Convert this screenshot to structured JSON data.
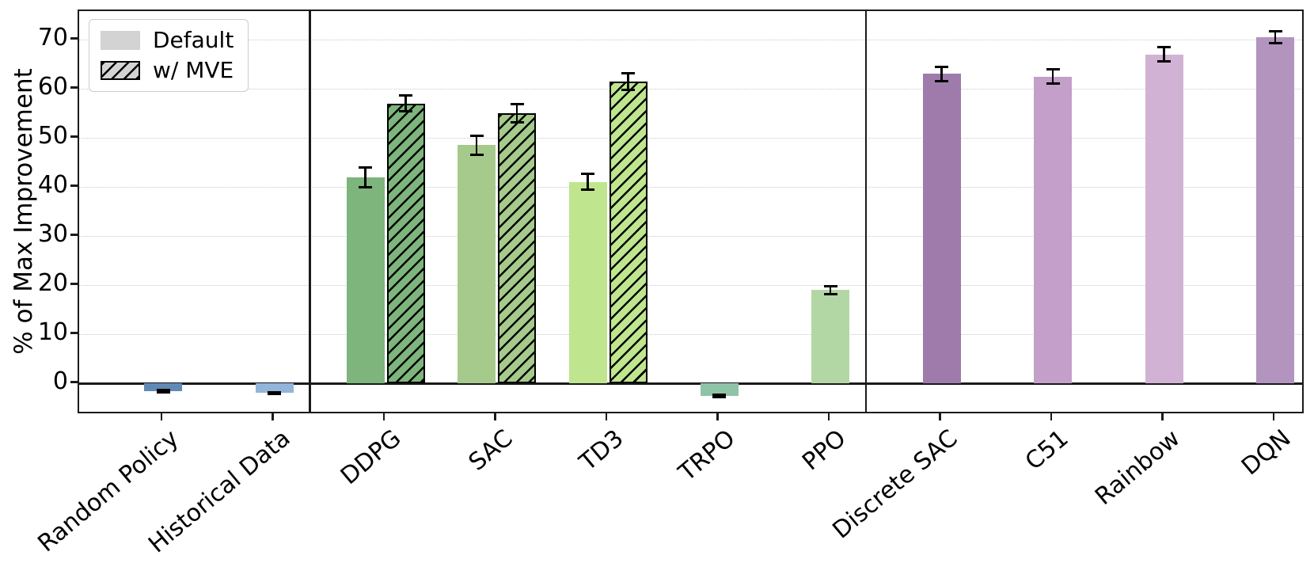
{
  "chart_data": {
    "type": "bar",
    "title": "",
    "xlabel": "",
    "ylabel": "% of Max Improvement",
    "ylim": [
      -6.5,
      75.8
    ],
    "yticks": [
      0,
      10,
      20,
      30,
      40,
      50,
      60,
      70
    ],
    "grid": "horizontal-dotted",
    "legend": {
      "position": "upper left",
      "entries": [
        {
          "label": "Default",
          "style": "solid",
          "color": "#d3d3d3"
        },
        {
          "label": "w/ MVE",
          "style": "hatched",
          "color": "#d3d3d3"
        }
      ]
    },
    "panel_separators_after_category_index": [
      1,
      6
    ],
    "categories": [
      {
        "label": "Random Policy",
        "bars": [
          {
            "series": "Default",
            "value": -1.6,
            "error": 0.2,
            "color": "#6189b5",
            "hatch": false
          }
        ]
      },
      {
        "label": "Historical Data",
        "bars": [
          {
            "series": "Default",
            "value": -2.0,
            "error": 0.2,
            "color": "#92b5d9",
            "hatch": false
          }
        ]
      },
      {
        "label": "DDPG",
        "bars": [
          {
            "series": "Default",
            "value": 42.0,
            "error": 2.0,
            "color": "#7db57c",
            "hatch": false
          },
          {
            "series": "w/ MVE",
            "value": 57.0,
            "error": 1.6,
            "color": "#7db57c",
            "hatch": true
          }
        ]
      },
      {
        "label": "SAC",
        "bars": [
          {
            "series": "Default",
            "value": 48.5,
            "error": 1.9,
            "color": "#a5ca8b",
            "hatch": false
          },
          {
            "series": "w/ MVE",
            "value": 55.0,
            "error": 1.9,
            "color": "#a5ca8b",
            "hatch": true
          }
        ]
      },
      {
        "label": "TD3",
        "bars": [
          {
            "series": "Default",
            "value": 41.0,
            "error": 1.6,
            "color": "#bfe68f",
            "hatch": false
          },
          {
            "series": "w/ MVE",
            "value": 61.5,
            "error": 1.7,
            "color": "#bfe68f",
            "hatch": true
          }
        ]
      },
      {
        "label": "TRPO",
        "bars": [
          {
            "series": "Default",
            "value": -2.6,
            "error": 0.25,
            "color": "#8fc3a8",
            "hatch": false
          }
        ]
      },
      {
        "label": "PPO",
        "bars": [
          {
            "series": "Default",
            "value": 19.0,
            "error": 0.8,
            "color": "#b3d7a4",
            "hatch": false
          }
        ]
      },
      {
        "label": "Discrete SAC",
        "bars": [
          {
            "series": "Default",
            "value": 63.0,
            "error": 1.5,
            "color": "#9f7bab",
            "hatch": false
          }
        ]
      },
      {
        "label": "C51",
        "bars": [
          {
            "series": "Default",
            "value": 62.5,
            "error": 1.5,
            "color": "#c49fca",
            "hatch": false
          }
        ]
      },
      {
        "label": "Rainbow",
        "bars": [
          {
            "series": "Default",
            "value": 67.0,
            "error": 1.5,
            "color": "#d2b2d4",
            "hatch": false
          }
        ]
      },
      {
        "label": "DQN",
        "bars": [
          {
            "series": "Default",
            "value": 70.5,
            "error": 1.2,
            "color": "#b294be",
            "hatch": false
          }
        ]
      }
    ]
  }
}
